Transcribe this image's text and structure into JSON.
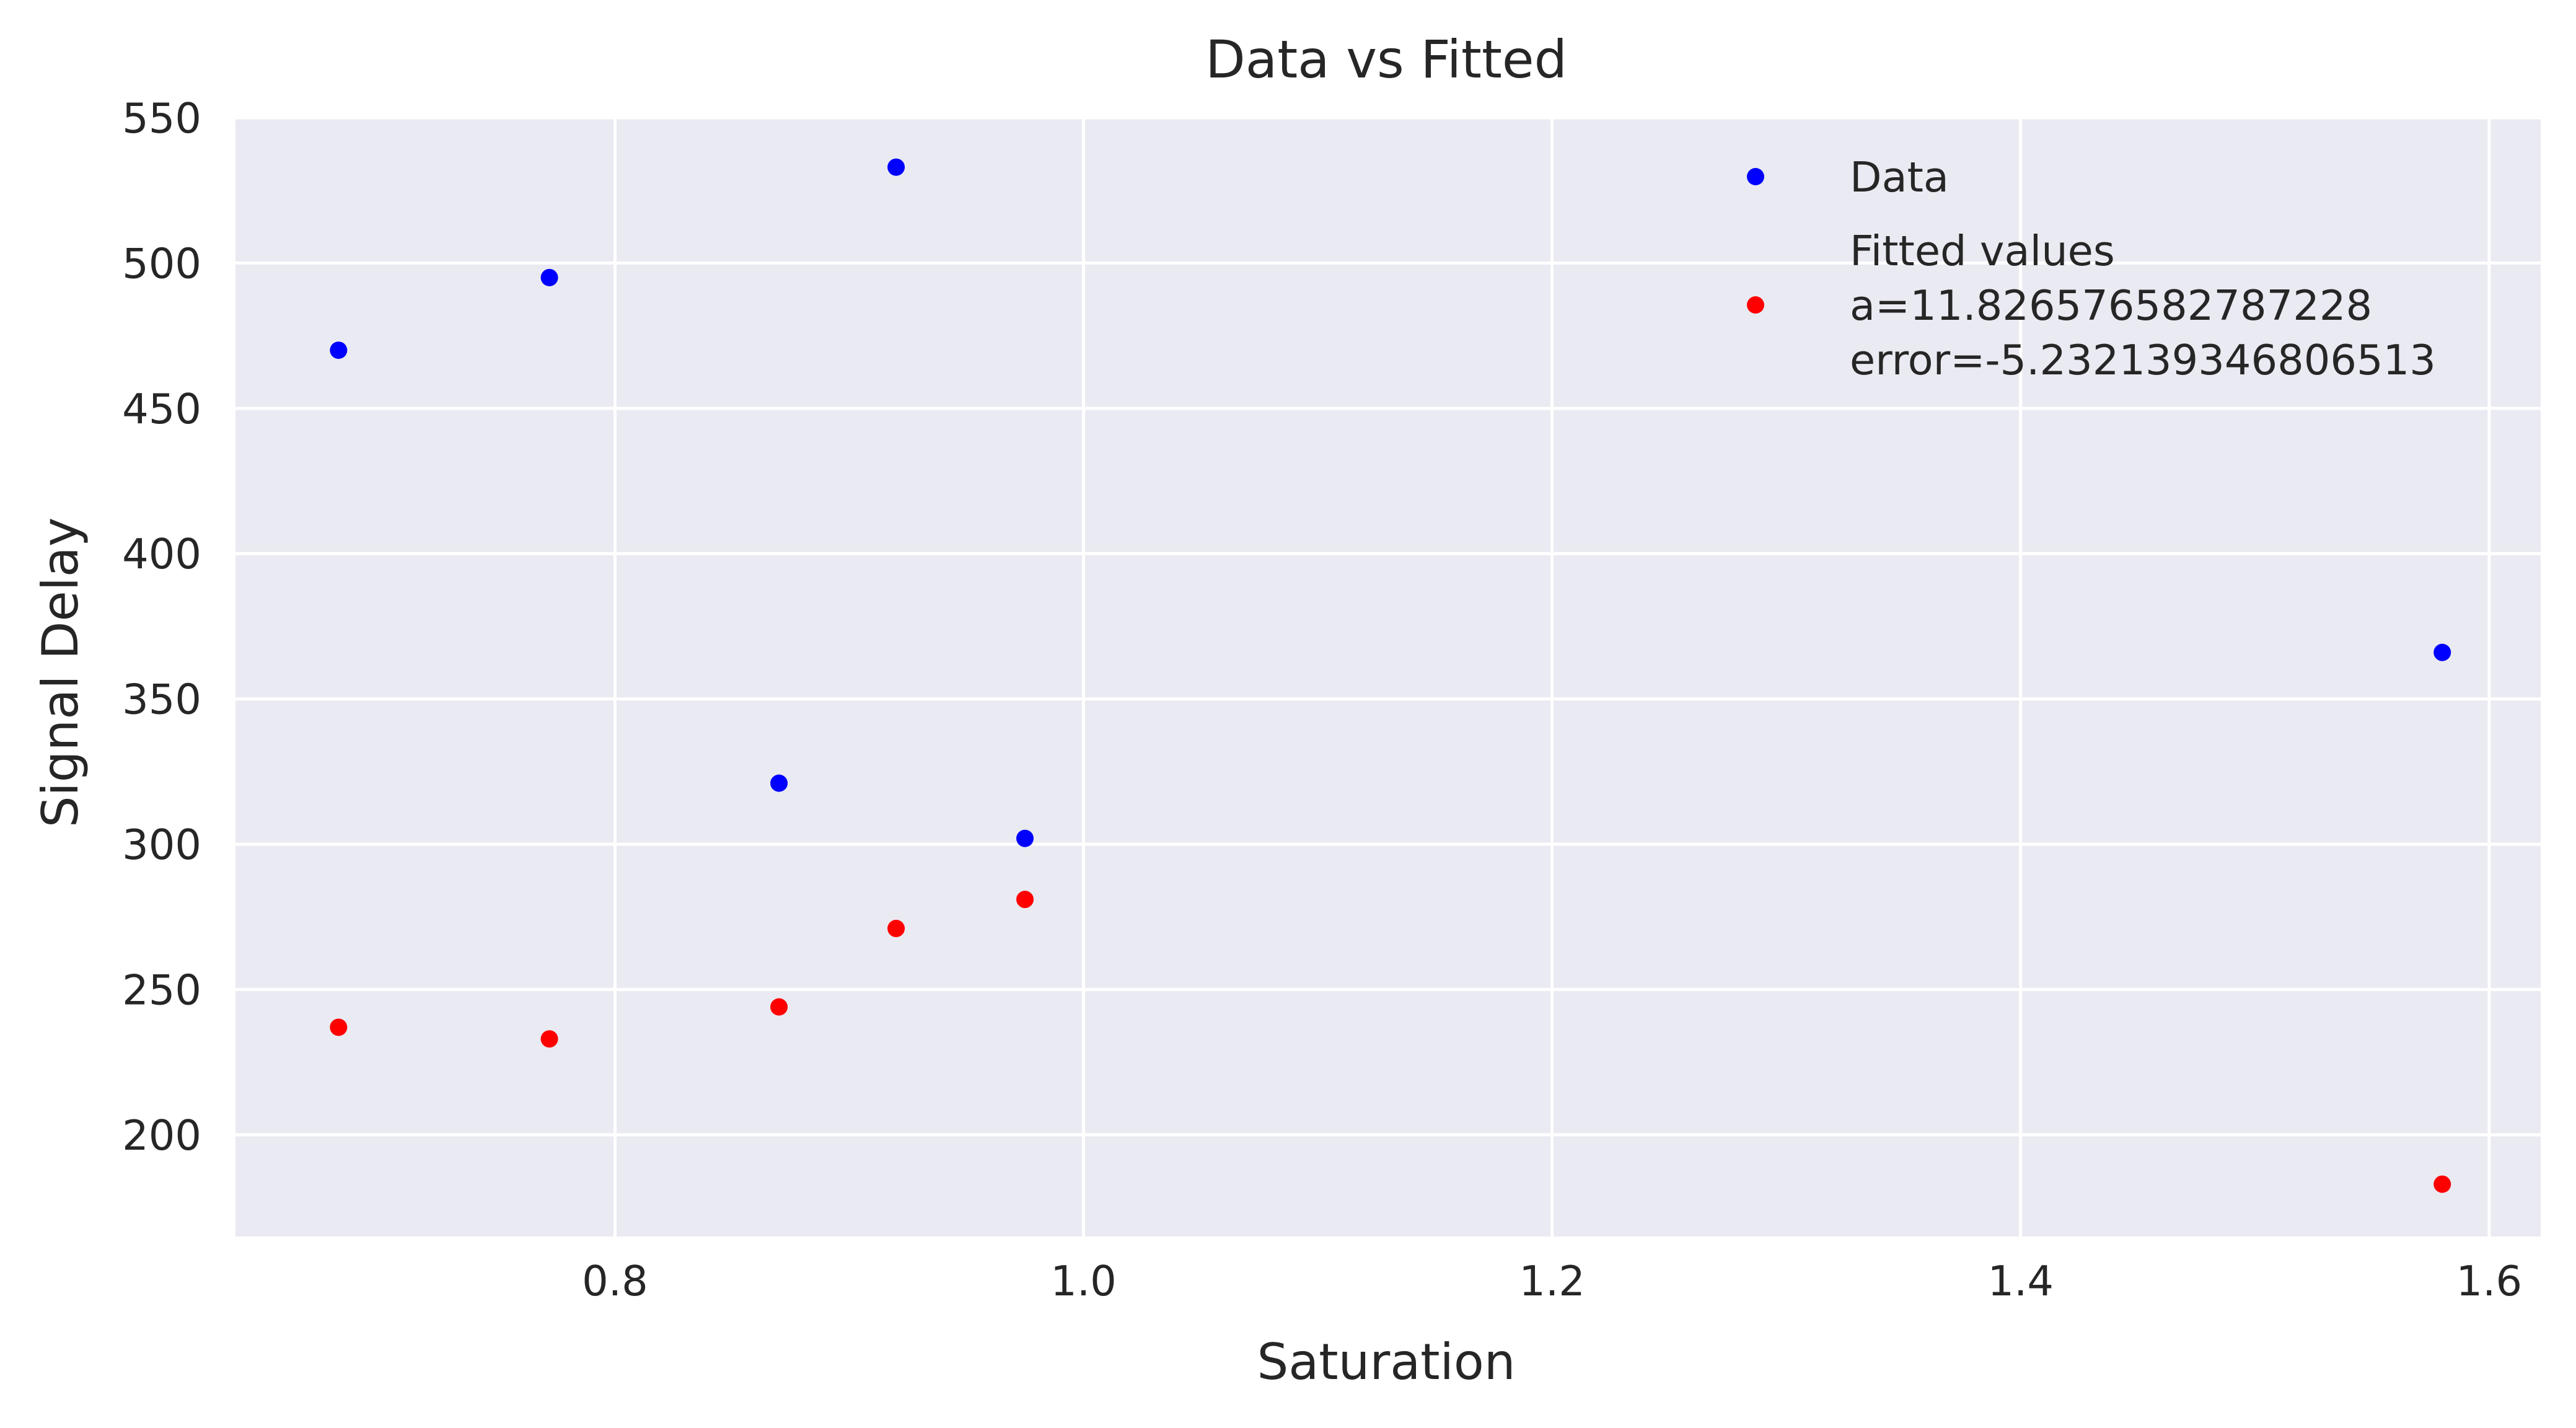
{
  "chart_data": {
    "type": "scatter",
    "title": "Data vs Fitted",
    "xlabel": "Saturation",
    "ylabel": "Signal Delay",
    "xlim": [
      0.638,
      1.622
    ],
    "ylim": [
      165,
      550
    ],
    "xticks": [
      0.8,
      1.0,
      1.2,
      1.4,
      1.6
    ],
    "xtick_labels": [
      "0.8",
      "1.0",
      "1.2",
      "1.4",
      "1.6"
    ],
    "yticks": [
      200,
      250,
      300,
      350,
      400,
      450,
      500,
      550
    ],
    "ytick_labels": [
      "200",
      "250",
      "300",
      "350",
      "400",
      "450",
      "500",
      "550"
    ],
    "grid": true,
    "legend_position": "top-right",
    "background": "#eaeaf2",
    "series": [
      {
        "name": "Data",
        "color": "#0000ff",
        "legend_lines": [
          "Data"
        ],
        "x": [
          0.682,
          0.772,
          0.87,
          0.92,
          0.975,
          1.58
        ],
        "y": [
          470,
          495,
          321,
          533,
          302,
          366
        ]
      },
      {
        "name": "Fitted values\n a=11.826576582787228\n error=-5.232139346806513",
        "color": "#ff0000",
        "legend_lines": [
          "Fitted values",
          " a=11.826576582787228",
          " error=-5.232139346806513"
        ],
        "x": [
          0.682,
          0.772,
          0.87,
          0.92,
          0.975,
          1.58
        ],
        "y": [
          237,
          233,
          244,
          271,
          281,
          183
        ]
      }
    ]
  }
}
